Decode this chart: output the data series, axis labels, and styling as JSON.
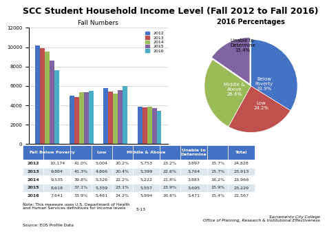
{
  "title": "SCC Student Household Income Level (Fall 2012 to Fall 2016)",
  "bar_title": "Fall Numbers",
  "pie_title": "2016 Percentages",
  "years": [
    2012,
    2013,
    2014,
    2015,
    2016
  ],
  "bar_data": {
    "Below Poverty": [
      10174,
      9884,
      9535,
      8618,
      7641
    ],
    "Low": [
      5004,
      4866,
      5326,
      5359,
      5461
    ],
    "Mid & Above": [
      5753,
      5399,
      5222,
      5557,
      5994
    ],
    "Unable to Determine": [
      3897,
      3764,
      3883,
      3695,
      3471
    ]
  },
  "bar_colors": [
    "#4472C4",
    "#C0504D",
    "#9BBB59",
    "#8064A2",
    "#4BACC6"
  ],
  "pie_data": [
    33.9,
    24.2,
    26.6,
    15.4
  ],
  "pie_colors": [
    "#4472C4",
    "#C0504D",
    "#9BBB59",
    "#8064A2"
  ],
  "table_col_labels": [
    "Fall",
    "Below Poverty",
    "",
    "Low",
    "",
    "Middle & Above",
    "",
    "Unable to\nDetermine",
    "",
    "Total"
  ],
  "table_data": [
    [
      "2012",
      "10,174",
      "41.0%",
      "5,004",
      "20.2%",
      "5,753",
      "23.2%",
      "3,897",
      "15.7%",
      "24,828"
    ],
    [
      "2013",
      "9,884",
      "41.3%",
      "4,866",
      "20.4%",
      "5,399",
      "22.6%",
      "3,764",
      "15.7%",
      "23,913"
    ],
    [
      "2014",
      "9,535",
      "39.8%",
      "5,326",
      "22.2%",
      "5,222",
      "21.8%",
      "3,883",
      "16.2%",
      "23,966"
    ],
    [
      "2015",
      "8,618",
      "37.1%",
      "5,359",
      "23.1%",
      "5,557",
      "23.9%",
      "3,695",
      "15.9%",
      "23,229"
    ],
    [
      "2016",
      "7,641",
      "33.9%",
      "5,461",
      "24.2%",
      "5,994",
      "26.6%",
      "3,471",
      "15.4%",
      "22,567"
    ]
  ],
  "col_widths": [
    0.07,
    0.09,
    0.07,
    0.07,
    0.07,
    0.09,
    0.07,
    0.09,
    0.07,
    0.09
  ],
  "note": "Note: This measure uses U.S. Department of Health\nand Human Services definitions for income levels",
  "page_num": "5-13",
  "source": "Source: EOS Profile Data",
  "institution": "Sacramento City College\nOffice of Planning, Research & Institutional Effectiveness",
  "bg_color": "#FFFFFF",
  "header_color": "#4472C4",
  "row_colors": [
    "#FFFFFF",
    "#DCE6F1"
  ],
  "ylim": [
    0,
    12000
  ],
  "yticks": [
    0,
    2000,
    4000,
    6000,
    8000,
    10000,
    12000
  ]
}
